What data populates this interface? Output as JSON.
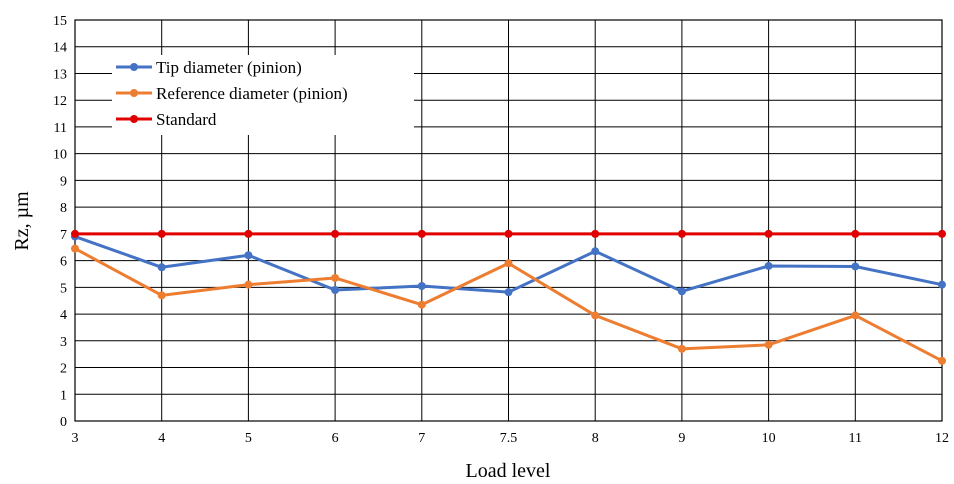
{
  "chart_data": {
    "type": "line",
    "title": "",
    "xlabel": "Load level",
    "ylabel": "Rz, µm",
    "categories": [
      "3",
      "4",
      "5",
      "6",
      "7",
      "7.5",
      "8",
      "9",
      "10",
      "11",
      "12"
    ],
    "ylim": [
      0,
      15
    ],
    "yticks": [
      "0",
      "1",
      "2",
      "3",
      "4",
      "5",
      "6",
      "7",
      "8",
      "9",
      "10",
      "11",
      "12",
      "13",
      "14",
      "15"
    ],
    "grid": true,
    "legend_position": "top-left",
    "series": [
      {
        "name": "Tip diameter (pinion)",
        "color": "#4472c4",
        "values": [
          6.9,
          5.75,
          6.2,
          4.9,
          5.05,
          4.82,
          6.35,
          4.85,
          5.8,
          5.78,
          5.1
        ]
      },
      {
        "name": "Reference diameter (pinion)",
        "color": "#ed7d31",
        "values": [
          6.45,
          4.7,
          5.1,
          5.35,
          4.35,
          5.9,
          3.95,
          2.7,
          2.85,
          3.95,
          2.25
        ]
      },
      {
        "name": "Standard",
        "color": "#e00000",
        "values": [
          7,
          7,
          7,
          7,
          7,
          7,
          7,
          7,
          7,
          7,
          7
        ]
      }
    ]
  }
}
